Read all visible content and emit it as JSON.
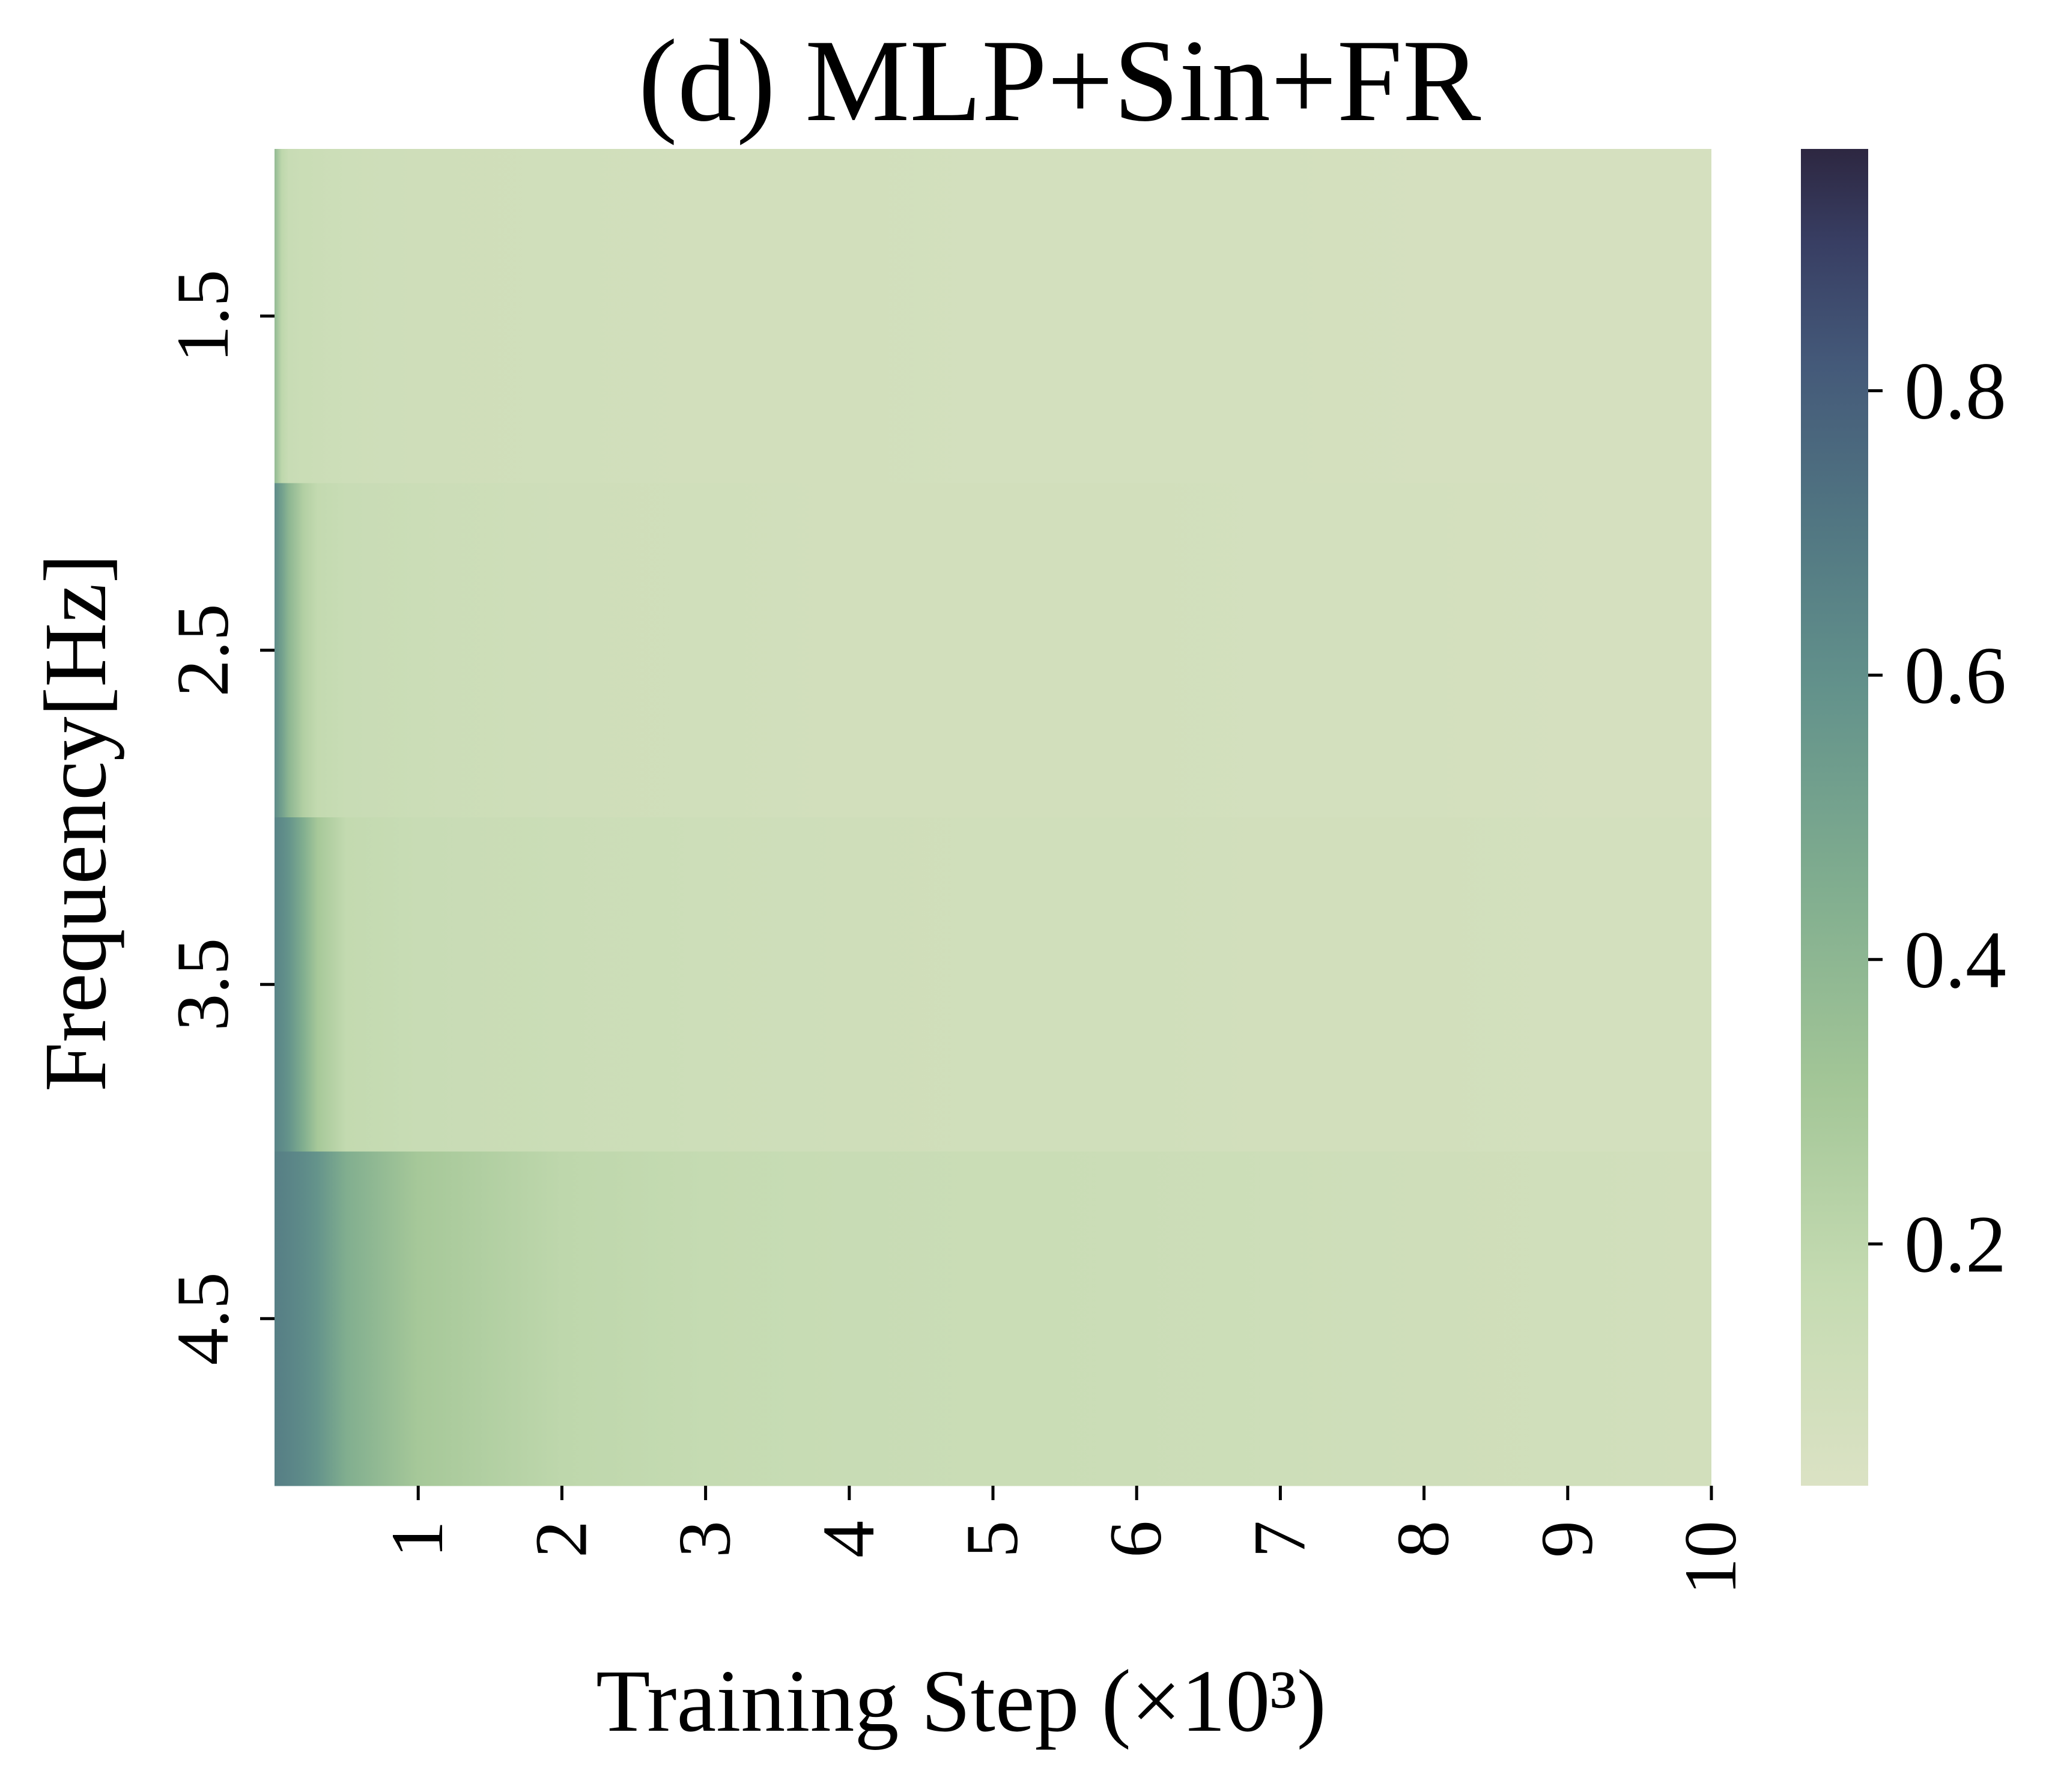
{
  "chart_data": {
    "type": "heatmap",
    "title": "(d) MLP+Sin+FR",
    "xlabel": "Training Step (×10³)",
    "ylabel": "Frequency[Hz]",
    "x_ticks": [
      "1",
      "2",
      "3",
      "4",
      "5",
      "6",
      "7",
      "8",
      "9",
      "10"
    ],
    "x_range": [
      0,
      10
    ],
    "rows": [
      "1.5",
      "2.5",
      "3.5",
      "4.5"
    ],
    "colorbar": {
      "range": [
        0.03,
        0.97
      ],
      "ticks": [
        "0.2",
        "0.4",
        "0.6",
        "0.8"
      ],
      "tick_values": [
        0.2,
        0.4,
        0.6,
        0.8
      ],
      "colormap": [
        [
          0.0,
          "#dbe2c4"
        ],
        [
          0.15,
          "#c5dbb2"
        ],
        [
          0.3,
          "#a3c697"
        ],
        [
          0.45,
          "#80ad8f"
        ],
        [
          0.6,
          "#62918b"
        ],
        [
          0.72,
          "#517682"
        ],
        [
          0.84,
          "#445979"
        ],
        [
          0.93,
          "#383e63"
        ],
        [
          1.0,
          "#2d2741"
        ]
      ]
    },
    "series": [
      {
        "name": "1.5",
        "step_values": [
          0.0,
          0.05,
          0.1,
          0.2,
          0.3,
          0.5,
          1,
          2,
          3,
          4,
          5,
          6,
          7,
          8,
          9,
          10
        ],
        "values": [
          0.38,
          0.2,
          0.15,
          0.14,
          0.13,
          0.12,
          0.11,
          0.1,
          0.09,
          0.09,
          0.08,
          0.08,
          0.08,
          0.07,
          0.07,
          0.07
        ]
      },
      {
        "name": "2.5",
        "step_values": [
          0.0,
          0.05,
          0.1,
          0.2,
          0.3,
          0.5,
          1,
          2,
          3,
          4,
          5,
          6,
          7,
          8,
          9,
          10
        ],
        "values": [
          0.62,
          0.52,
          0.4,
          0.25,
          0.18,
          0.15,
          0.13,
          0.11,
          0.1,
          0.09,
          0.09,
          0.09,
          0.08,
          0.08,
          0.07,
          0.07
        ]
      },
      {
        "name": "3.5",
        "step_values": [
          0.0,
          0.05,
          0.1,
          0.2,
          0.3,
          0.5,
          1,
          2,
          3,
          4,
          5,
          6,
          7,
          8,
          9,
          10
        ],
        "values": [
          0.65,
          0.62,
          0.58,
          0.45,
          0.3,
          0.18,
          0.15,
          0.13,
          0.12,
          0.11,
          0.1,
          0.1,
          0.09,
          0.09,
          0.08,
          0.08
        ]
      },
      {
        "name": "4.5",
        "step_values": [
          0.0,
          0.05,
          0.1,
          0.2,
          0.3,
          0.5,
          1,
          2,
          3,
          4,
          5,
          6,
          7,
          8,
          9,
          10
        ],
        "values": [
          0.67,
          0.66,
          0.65,
          0.62,
          0.58,
          0.45,
          0.3,
          0.2,
          0.17,
          0.15,
          0.14,
          0.13,
          0.12,
          0.11,
          0.1,
          0.09
        ]
      }
    ],
    "grid": false,
    "legend": "colorbar-right"
  }
}
